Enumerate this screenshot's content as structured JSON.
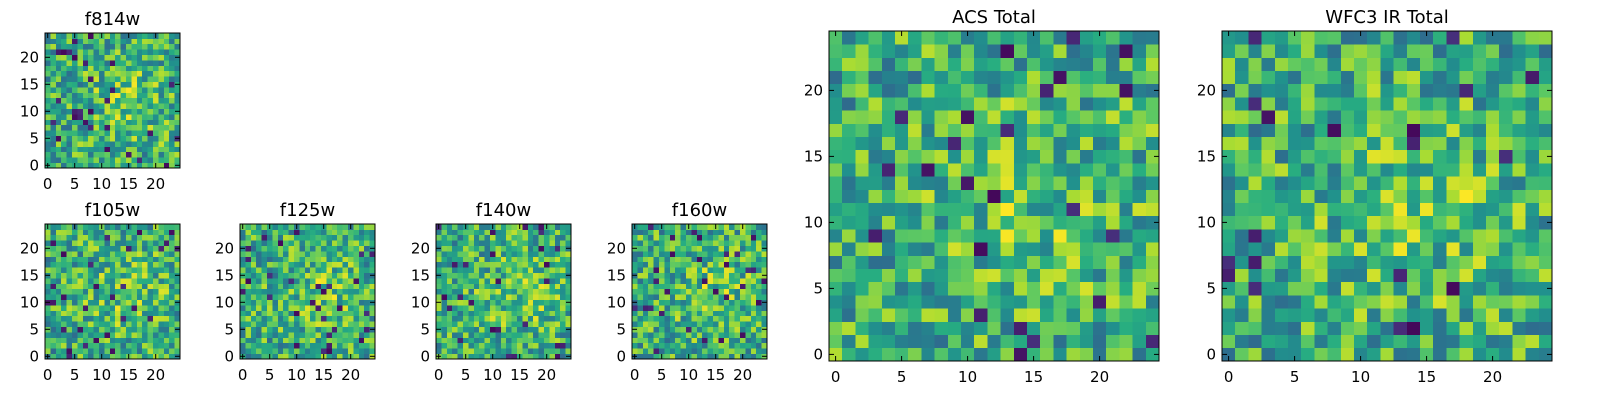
{
  "figure": {
    "background": "#ffffff",
    "colormap": "viridis"
  },
  "chart_data": [
    {
      "id": "f814w",
      "type": "heatmap",
      "title": "f814w",
      "grid": false,
      "size": [
        25,
        25
      ],
      "xlim": [
        0,
        24
      ],
      "ylim": [
        0,
        24
      ],
      "xticks": [
        0,
        5,
        10,
        15,
        20
      ],
      "yticks": [
        0,
        5,
        10,
        15,
        20
      ],
      "tick_labels_x": [
        "0",
        "5",
        "10",
        "15",
        "20"
      ],
      "tick_labels_y": [
        "0",
        "5",
        "10",
        "15",
        "20"
      ],
      "seed": 11
    },
    {
      "id": "f105w",
      "type": "heatmap",
      "title": "f105w",
      "grid": false,
      "size": [
        25,
        25
      ],
      "xlim": [
        0,
        24
      ],
      "ylim": [
        0,
        24
      ],
      "xticks": [
        0,
        5,
        10,
        15,
        20
      ],
      "yticks": [
        0,
        5,
        10,
        15,
        20
      ],
      "tick_labels_x": [
        "0",
        "5",
        "10",
        "15",
        "20"
      ],
      "tick_labels_y": [
        "0",
        "5",
        "10",
        "15",
        "20"
      ],
      "seed": 23
    },
    {
      "id": "f125w",
      "type": "heatmap",
      "title": "f125w",
      "grid": false,
      "size": [
        25,
        25
      ],
      "xlim": [
        0,
        24
      ],
      "ylim": [
        0,
        24
      ],
      "xticks": [
        0,
        5,
        10,
        15,
        20
      ],
      "yticks": [
        0,
        5,
        10,
        15,
        20
      ],
      "tick_labels_x": [
        "0",
        "5",
        "10",
        "15",
        "20"
      ],
      "tick_labels_y": [
        "0",
        "5",
        "10",
        "15",
        "20"
      ],
      "seed": 37
    },
    {
      "id": "f140w",
      "type": "heatmap",
      "title": "f140w",
      "grid": false,
      "size": [
        25,
        25
      ],
      "xlim": [
        0,
        24
      ],
      "ylim": [
        0,
        24
      ],
      "xticks": [
        0,
        5,
        10,
        15,
        20
      ],
      "yticks": [
        0,
        5,
        10,
        15,
        20
      ],
      "tick_labels_x": [
        "0",
        "5",
        "10",
        "15",
        "20"
      ],
      "tick_labels_y": [
        "0",
        "5",
        "10",
        "15",
        "20"
      ],
      "seed": 41
    },
    {
      "id": "f160w",
      "type": "heatmap",
      "title": "f160w",
      "grid": false,
      "size": [
        25,
        25
      ],
      "xlim": [
        0,
        24
      ],
      "ylim": [
        0,
        24
      ],
      "xticks": [
        0,
        5,
        10,
        15,
        20
      ],
      "yticks": [
        0,
        5,
        10,
        15,
        20
      ],
      "tick_labels_x": [
        "0",
        "5",
        "10",
        "15",
        "20"
      ],
      "tick_labels_y": [
        "0",
        "5",
        "10",
        "15",
        "20"
      ],
      "seed": 53
    },
    {
      "id": "acs-total",
      "type": "heatmap",
      "title": "ACS Total",
      "grid": false,
      "size": [
        25,
        25
      ],
      "xlim": [
        0,
        24
      ],
      "ylim": [
        0,
        24
      ],
      "xticks": [
        0,
        5,
        10,
        15,
        20
      ],
      "yticks": [
        0,
        5,
        10,
        15,
        20
      ],
      "tick_labels_x": [
        "0",
        "5",
        "10",
        "15",
        "20"
      ],
      "tick_labels_y": [
        "0",
        "5",
        "10",
        "15",
        "20"
      ],
      "seed": 67
    },
    {
      "id": "wfc3-ir-total",
      "type": "heatmap",
      "title": "WFC3 IR Total",
      "grid": false,
      "size": [
        25,
        25
      ],
      "xlim": [
        0,
        24
      ],
      "ylim": [
        0,
        24
      ],
      "xticks": [
        0,
        5,
        10,
        15,
        20
      ],
      "yticks": [
        0,
        5,
        10,
        15,
        20
      ],
      "tick_labels_x": [
        "0",
        "5",
        "10",
        "15",
        "20"
      ],
      "tick_labels_y": [
        "0",
        "5",
        "10",
        "15",
        "20"
      ],
      "seed": 79
    }
  ]
}
